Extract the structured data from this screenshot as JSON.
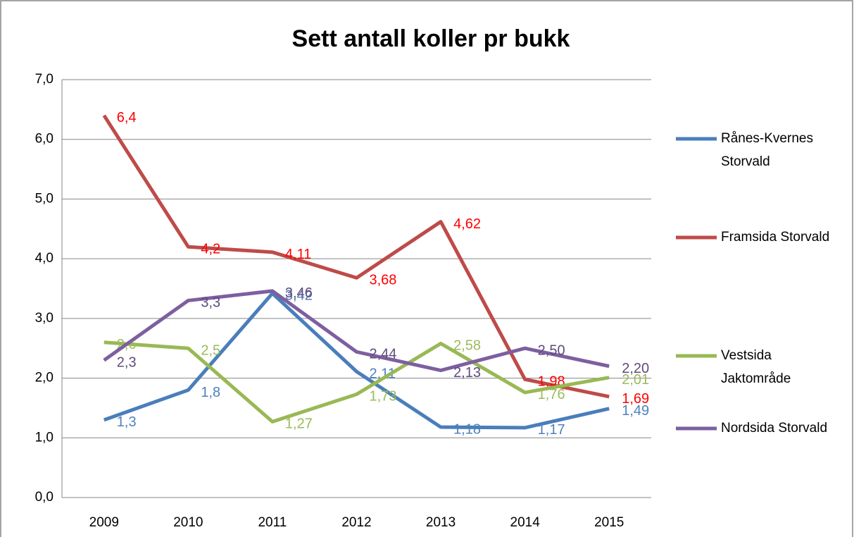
{
  "chart_data": {
    "type": "line",
    "title": "Sett antall koller pr bukk",
    "categories": [
      "2009",
      "2010",
      "2011",
      "2012",
      "2013",
      "2014",
      "2015"
    ],
    "ylim": [
      0,
      7
    ],
    "yticks": [
      {
        "value": 0,
        "label": "0,0"
      },
      {
        "value": 1,
        "label": "1,0"
      },
      {
        "value": 2,
        "label": "2,0"
      },
      {
        "value": 3,
        "label": "3,0"
      },
      {
        "value": 4,
        "label": "4,0"
      },
      {
        "value": 5,
        "label": "5,0"
      },
      {
        "value": 6,
        "label": "6,0"
      },
      {
        "value": 7,
        "label": "7,0"
      }
    ],
    "grid": true,
    "legend": "right",
    "series": [
      {
        "name": "Rånes-Kvernes Storvald",
        "color": "#4a7ebb",
        "label_color": "#4f81bd",
        "values": [
          1.3,
          1.8,
          3.42,
          2.11,
          1.18,
          1.17,
          1.49
        ],
        "value_labels": [
          "1,3",
          "1,8",
          "3,42",
          "2,11",
          "1,18",
          "1,17",
          "1,49"
        ]
      },
      {
        "name": "Framsida Storvald",
        "color": "#be4b48",
        "label_color": "#ff0000",
        "values": [
          6.4,
          4.2,
          4.11,
          3.68,
          4.62,
          1.98,
          1.69
        ],
        "value_labels": [
          "6,4",
          "4,2",
          "4,11",
          "3,68",
          "4,62",
          "1,98",
          "1,69"
        ]
      },
      {
        "name": "Vestsida Jaktområde",
        "color": "#98b954",
        "label_color": "#9bbb59",
        "values": [
          2.6,
          2.5,
          1.27,
          1.73,
          2.58,
          1.76,
          2.01
        ],
        "value_labels": [
          "2,6",
          "2,5",
          "1,27",
          "1,73",
          "2,58",
          "1,76",
          "2,01"
        ]
      },
      {
        "name": "Nordsida Storvald",
        "color": "#7d5fa0",
        "label_color": "#604a7b",
        "values": [
          2.3,
          3.3,
          3.46,
          2.44,
          2.13,
          2.5,
          2.2
        ],
        "value_labels": [
          "2,3",
          "3,3",
          "3,46",
          "2,44",
          "2,13",
          "2,50",
          "2,20"
        ]
      }
    ]
  }
}
